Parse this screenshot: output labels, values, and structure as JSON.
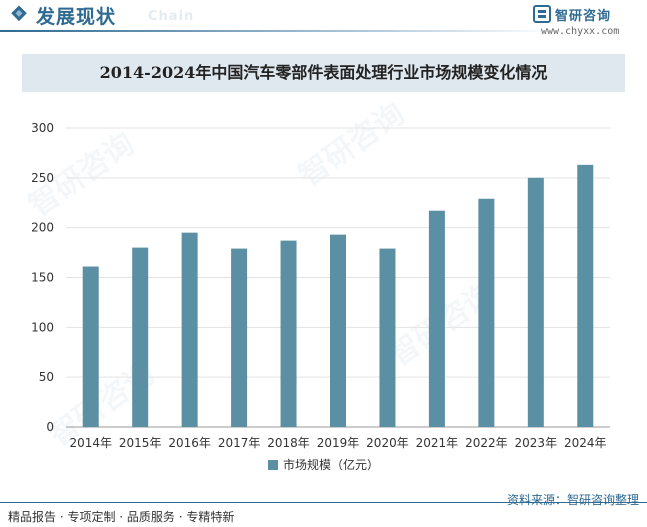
{
  "header": {
    "title": "发展现状",
    "subtitle": "Chain"
  },
  "brand": {
    "name": "智研咨询",
    "url": "www.chyxx.com"
  },
  "chart_data": {
    "type": "bar",
    "title": "2014-2024年中国汽车零部件表面处理行业市场规模变化情况",
    "categories": [
      "2014年",
      "2015年",
      "2016年",
      "2017年",
      "2018年",
      "2019年",
      "2020年",
      "2021年",
      "2022年",
      "2023年",
      "2024年"
    ],
    "series": [
      {
        "name": "市场规模（亿元）",
        "values": [
          161,
          180,
          195,
          179,
          187,
          193,
          179,
          217,
          229,
          250,
          263
        ]
      }
    ],
    "ylim": [
      0,
      300
    ],
    "yticks": [
      0,
      50,
      100,
      150,
      200,
      250,
      300
    ],
    "grid": true,
    "legend": "bottom",
    "bar_color": "#5b8fa3",
    "xlabel": "",
    "ylabel": ""
  },
  "watermark": "智研咨询",
  "footer": {
    "left": "精品报告 · 专项定制 · 品质服务 · 专精特新",
    "right": "资料来源：智研咨询整理"
  },
  "colors": {
    "accent": "#2e6a91",
    "bar": "#5b8fa3",
    "title_band": "#dfe8ef"
  }
}
